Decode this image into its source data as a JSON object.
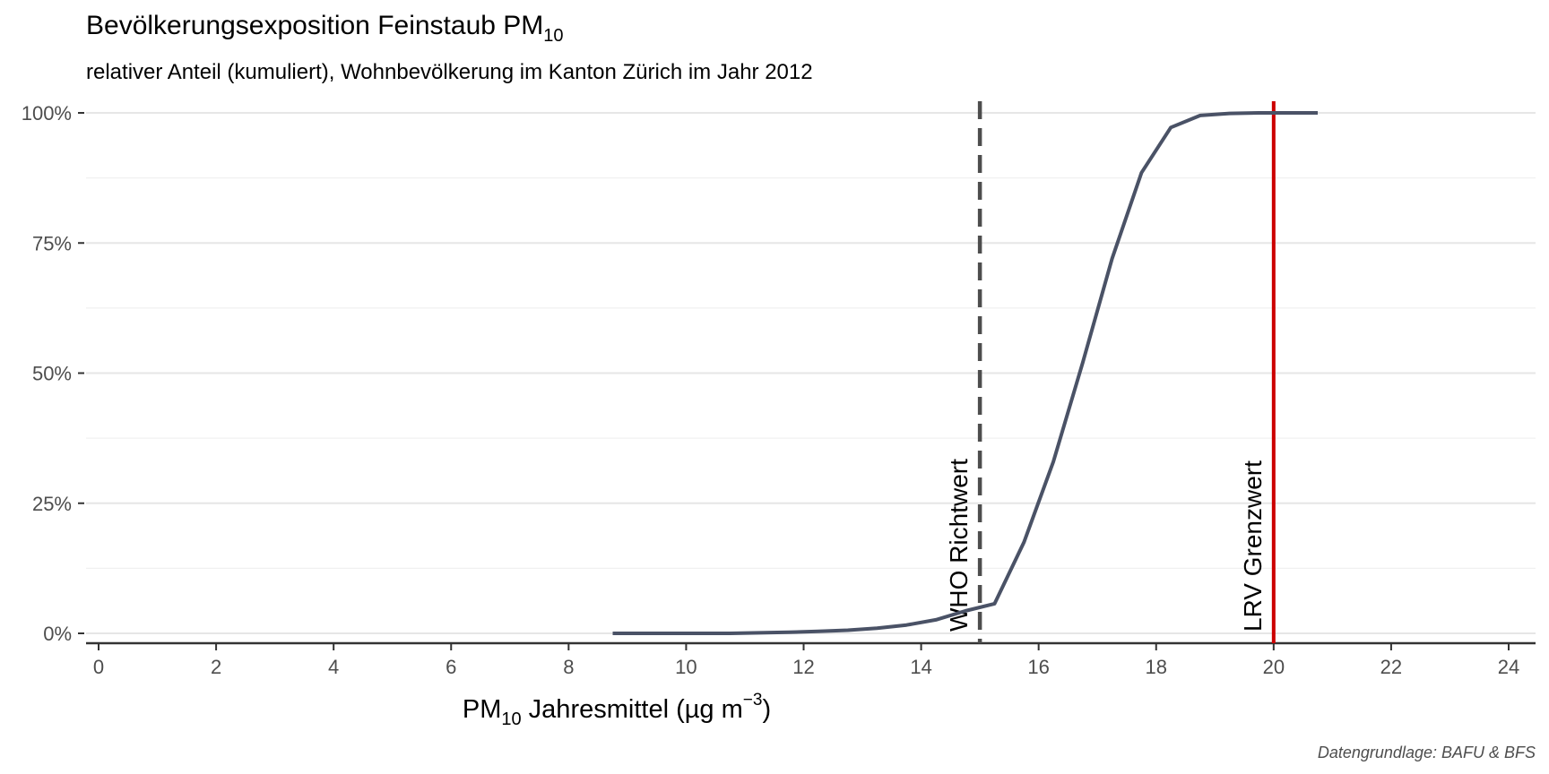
{
  "chart_data": {
    "type": "line",
    "title_main": "Bevölkerungsexposition Feinstaub PM",
    "title_sub": "10",
    "subtitle": "relativer Anteil (kumuliert), Wohnbevölkerung im Kanton Zürich im Jahr 2012",
    "xlabel_pre": "PM",
    "xlabel_sub": "10",
    "xlabel_post": " Jahresmittel (µg m",
    "xlabel_sup": "−3",
    "xlabel_end": ")",
    "caption": "Datengrundlage: BAFU & BFS",
    "xlim": [
      0,
      24
    ],
    "ylim": [
      0,
      1
    ],
    "x_ticks": [
      0,
      2,
      4,
      6,
      8,
      10,
      12,
      14,
      16,
      18,
      20,
      22,
      24
    ],
    "x_tick_labels": [
      "0",
      "2",
      "4",
      "6",
      "8",
      "10",
      "12",
      "14",
      "16",
      "18",
      "20",
      "22",
      "24"
    ],
    "y_ticks": [
      0,
      0.25,
      0.5,
      0.75,
      1
    ],
    "y_tick_labels": [
      "0%",
      "25%",
      "50%",
      "75%",
      "100%"
    ],
    "series_color": "#4a5266",
    "x": [
      8.75,
      9.25,
      9.75,
      10.25,
      10.75,
      11.25,
      11.75,
      12.25,
      12.75,
      13.25,
      13.75,
      14.25,
      14.75,
      15.25,
      15.75,
      16.25,
      16.75,
      17.25,
      17.75,
      18.25,
      18.75,
      19.25,
      19.75,
      20.25,
      20.75
    ],
    "y": [
      0.0,
      0.0,
      0.0,
      0.0,
      0.0,
      0.001,
      0.002,
      0.004,
      0.006,
      0.01,
      0.016,
      0.026,
      0.043,
      0.057,
      0.175,
      0.33,
      0.52,
      0.72,
      0.885,
      0.972,
      0.995,
      0.999,
      1.0,
      1.0,
      1.0
    ],
    "reference_lines": [
      {
        "x": 15,
        "label": "WHO Richtwert",
        "color": "#4d4d4d",
        "style": "dashed"
      },
      {
        "x": 20,
        "label": "LRV Grenzwert",
        "color": "#cc0000",
        "style": "solid"
      }
    ]
  }
}
